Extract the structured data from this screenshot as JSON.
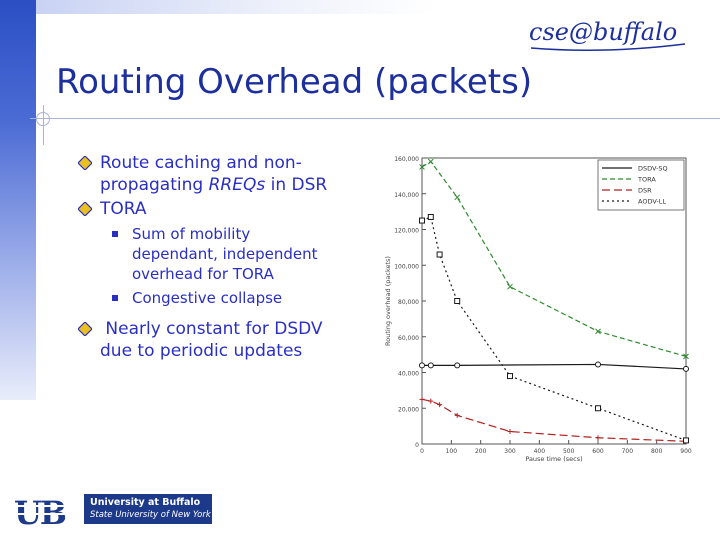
{
  "header": {
    "brand_logo_text": "cse@buffalo"
  },
  "title": "Routing Overhead (packets)",
  "bullets": [
    {
      "line1": "Route caching and non-",
      "line2_pre": "propagating ",
      "line2_em": "RREQs",
      "line2_post": " in DSR"
    },
    {
      "text": "TORA"
    }
  ],
  "sub_bullets": [
    {
      "line1": "Sum of mobility",
      "line2": "dependant, independent",
      "line3": "overhead for TORA"
    },
    {
      "text": "Congestive collapse"
    }
  ],
  "bullet3": {
    "line1": " Nearly constant for DSDV",
    "line2": "due to periodic updates"
  },
  "footer": {
    "ub_line1": "University at Buffalo",
    "ub_line2": "State University of New York",
    "ub_mark": "UB"
  },
  "chart_data": {
    "type": "line",
    "xlabel": "Pause time (secs)",
    "ylabel": "Routing overhead (packets)",
    "xlim": [
      0,
      900
    ],
    "ylim": [
      0,
      160000
    ],
    "xticks": [
      "0",
      "100",
      "200",
      "300",
      "400",
      "500",
      "600",
      "700",
      "800",
      "900"
    ],
    "yticks": [
      "0",
      "20,000",
      "40,000",
      "60,000",
      "80,000",
      "100,000",
      "120,000",
      "140,000",
      "160,000"
    ],
    "legend_position": "top-right",
    "series": [
      {
        "name": "DSDV-SQ",
        "x": [
          0,
          30,
          120,
          600,
          900
        ],
        "y": [
          44000,
          44000,
          44000,
          44500,
          42000
        ],
        "color": "#1a1a1a",
        "dash": ""
      },
      {
        "name": "TORA",
        "x": [
          0,
          30,
          120,
          300,
          600,
          900
        ],
        "y": [
          155000,
          158000,
          138000,
          88000,
          63000,
          49000
        ],
        "color": "#2e8b2e",
        "dash": "5,3"
      },
      {
        "name": "DSR",
        "x": [
          0,
          30,
          60,
          120,
          300,
          600,
          900
        ],
        "y": [
          25000,
          24000,
          22000,
          16000,
          7000,
          3500,
          1500
        ],
        "color": "#b22222",
        "dash": "8,4"
      },
      {
        "name": "AODV-LL",
        "x": [
          0,
          30,
          60,
          120,
          300,
          600,
          900
        ],
        "y": [
          125000,
          127000,
          106000,
          80000,
          38000,
          20000,
          2000
        ],
        "color": "#1a1a1a",
        "dash": "2,3"
      }
    ]
  }
}
